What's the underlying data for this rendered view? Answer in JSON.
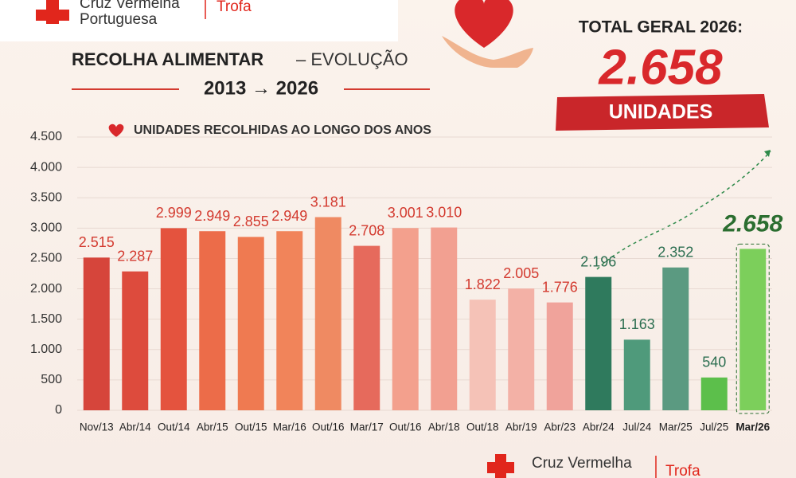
{
  "header": {
    "org_name": "Cruz Vermelha\nPortuguesa",
    "branch": "Trofa"
  },
  "total": {
    "label": "TOTAL GERAL 2026:",
    "amount": "2.658",
    "unit": "UNIDADES"
  },
  "footer": {
    "org_name": "Cruz Vermelha",
    "branch": "Trofa"
  },
  "chart_data": {
    "type": "bar",
    "title": "RECOLHA ALIMENTAR",
    "title_suffix": "– EVOLUÇÃO",
    "subtitle": "2013 → 2026",
    "legend_label": "UNIDADES RECOLHIDAS AO LONGO DOS ANOS",
    "categories": [
      "Nov/13",
      "Abr/14",
      "Out/14",
      "Abr/15",
      "Out/15",
      "Mar/16",
      "Out/16",
      "Mar/17",
      "Out/16",
      "Abr/18",
      "Out/18",
      "Abr/19",
      "Abr/23",
      "Abr/24",
      "Jul/24",
      "Mar/25",
      "Jul/25",
      "Mar/26"
    ],
    "values": [
      2515,
      2287,
      2999,
      2949,
      2855,
      2949,
      3181,
      2708,
      3001,
      3010,
      1822,
      2005,
      1776,
      2196,
      1163,
      2352,
      540,
      2658
    ],
    "value_labels": [
      "2.515",
      "2.287",
      "2.999",
      "2.949",
      "2.855",
      "2.949",
      "3.181",
      "2.708",
      "3.001",
      "3.010",
      "1.822",
      "2.005",
      "1.776",
      "2.196",
      "1.163",
      "2.352",
      "540",
      "2.658"
    ],
    "colors": [
      "#d6453b",
      "#dd4b3d",
      "#e4533e",
      "#ec6c49",
      "#ef7a51",
      "#f1845a",
      "#ef8a62",
      "#e66a5c",
      "#f3a08d",
      "#f2a091",
      "#f5c2b7",
      "#f3b1a6",
      "#f0a39b",
      "#2f7a5d",
      "#4f9a7b",
      "#5b9a81",
      "#5cbf4b",
      "#7ccf5b"
    ],
    "value_label_colors": [
      "#d33a2f",
      "#d33a2f",
      "#d33a2f",
      "#d33a2f",
      "#d33a2f",
      "#d33a2f",
      "#d33a2f",
      "#d33a2f",
      "#d33a2f",
      "#d33a2f",
      "#d33a2f",
      "#d33a2f",
      "#d33a2f",
      "#2b6e50",
      "#2b6e50",
      "#2b6e50",
      "#2b6e50",
      "#2b6e30"
    ],
    "ylim": [
      0,
      4500
    ],
    "yticks": [
      0,
      500,
      {
        "value": 1000,
        "label": "1.000"
      },
      {
        "value": 1500,
        "label": "1.500"
      },
      {
        "value": 2000,
        "label": "2.000"
      },
      {
        "value": 2500,
        "label": "2.500"
      },
      {
        "value": 3000,
        "label": "3.000"
      },
      {
        "value": 3500,
        "label": "3.500"
      },
      {
        "value": 4000,
        "label": "4.000"
      },
      {
        "value": 4500,
        "label": "4.500"
      }
    ],
    "grid": true
  }
}
